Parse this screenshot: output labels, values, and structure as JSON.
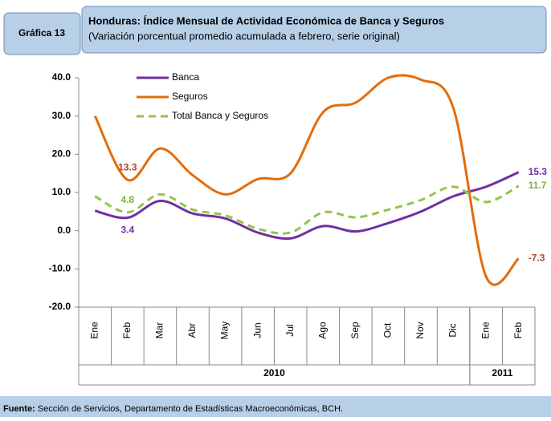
{
  "chart_data": {
    "type": "line",
    "badge": "Gráfica 13",
    "title": "Honduras: Índice Mensual de Actividad Económica de Banca  y Seguros",
    "subtitle": "(Variación porcentual promedio acumulada a febrero, serie original)",
    "categories": [
      "Ene",
      "Feb",
      "Mar",
      "Abr",
      "May",
      "Jun",
      "Jul",
      "Ago",
      "Sep",
      "Oct",
      "Nov",
      "Dic",
      "Ene",
      "Feb"
    ],
    "x_groups": [
      {
        "label": "2010",
        "start": 0,
        "end": 11
      },
      {
        "label": "2011",
        "start": 12,
        "end": 13
      }
    ],
    "ylim": [
      -20,
      40
    ],
    "yticks": [
      {
        "value": 40,
        "label": "40.0"
      },
      {
        "value": 30,
        "label": "30.0"
      },
      {
        "value": 20,
        "label": "20.0"
      },
      {
        "value": 10,
        "label": "10.0"
      },
      {
        "value": 0,
        "label": "0.0"
      },
      {
        "value": -10,
        "label": "-10.0"
      },
      {
        "value": -20,
        "label": "-20.0"
      }
    ],
    "legend": "top-left",
    "labeled_points": [
      1,
      13
    ],
    "series": [
      {
        "name": "Banca",
        "color": "#7030a0",
        "label_color": "#7030a0",
        "dash": false,
        "values": [
          5.2,
          3.4,
          7.8,
          4.5,
          3.2,
          -0.5,
          -2,
          1.2,
          -0.2,
          2,
          5,
          9,
          11.5,
          15.3
        ]
      },
      {
        "name": "Seguros",
        "color": "#e46c0a",
        "label_color": "#c0392b",
        "dash": false,
        "values": [
          30,
          13.3,
          21.5,
          14.5,
          9.5,
          13.5,
          15,
          31,
          33.5,
          40,
          39.5,
          32,
          -12,
          -7.3
        ]
      },
      {
        "name": "Total Banca y Seguros",
        "color": "#92c44c",
        "label_color": "#7fb040",
        "dash": true,
        "values": [
          9,
          4.8,
          9.5,
          5.5,
          4,
          0.5,
          -0.5,
          4.8,
          3.5,
          5.5,
          8,
          11.5,
          7.5,
          11.7
        ]
      }
    ]
  },
  "footer": {
    "label": "Fuente:",
    "text": " Sección de Servicios, Departamento de Estadísticas Macroeconómicas, BCH."
  }
}
